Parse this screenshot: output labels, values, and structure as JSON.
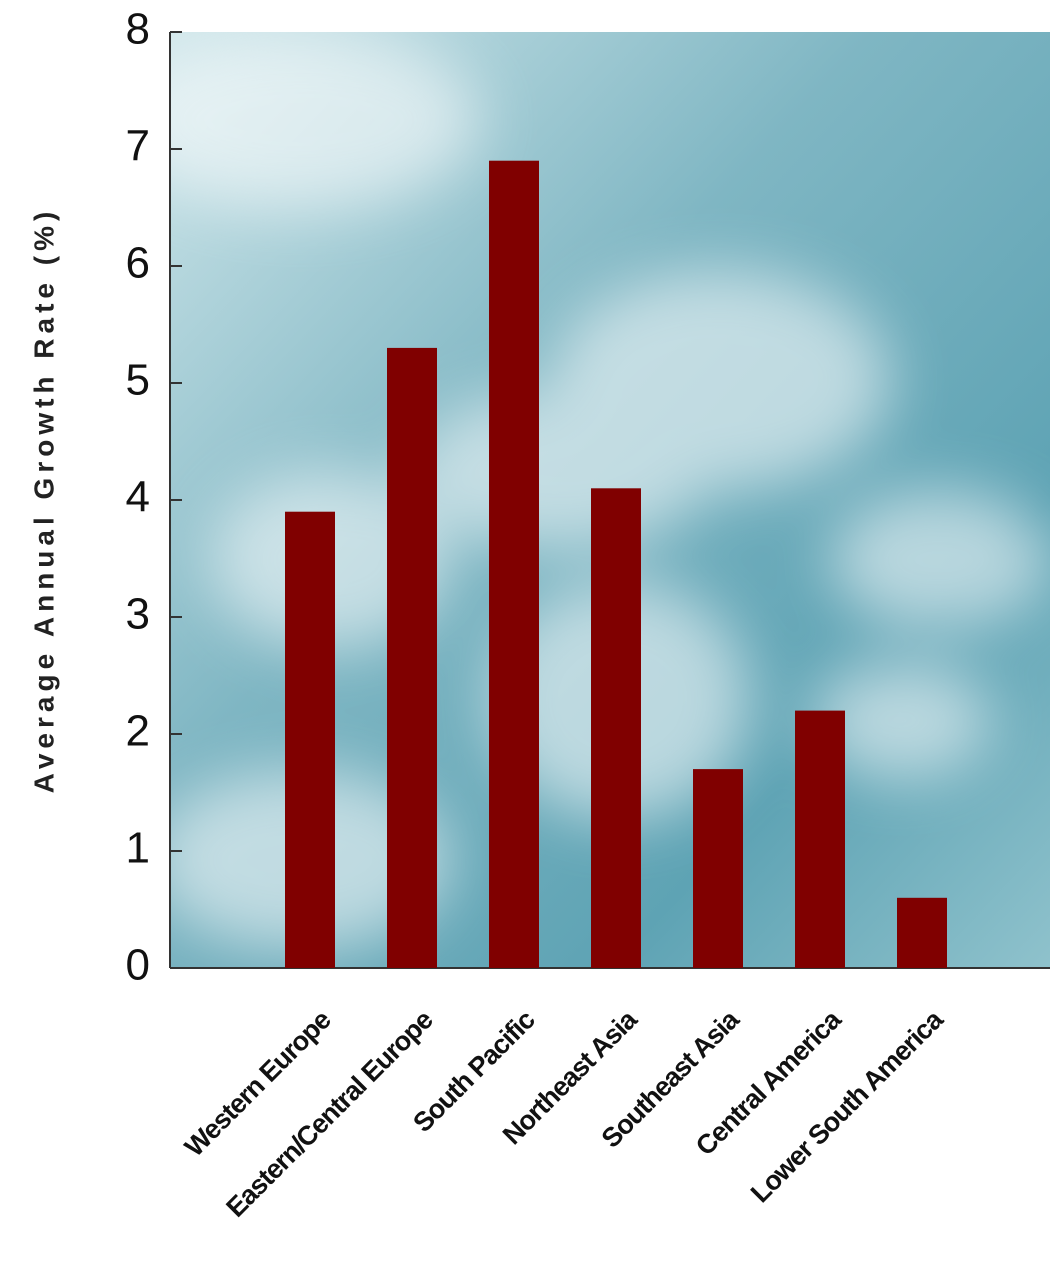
{
  "chart_data": {
    "type": "bar",
    "y_label": "Average Annual Growth Rate (%)",
    "categories": [
      "Western Europe",
      "Eastern/Central Europe",
      "South Pacific",
      "Northeast Asia",
      "Southeast Asia",
      "Central America",
      "Lower South America"
    ],
    "values": [
      3.9,
      5.3,
      6.9,
      4.1,
      1.7,
      2.2,
      0.6
    ],
    "color": "#800000",
    "ylim": [
      0,
      8
    ],
    "yticks": [
      0,
      1,
      2,
      3,
      4,
      5,
      6,
      7,
      8
    ]
  }
}
